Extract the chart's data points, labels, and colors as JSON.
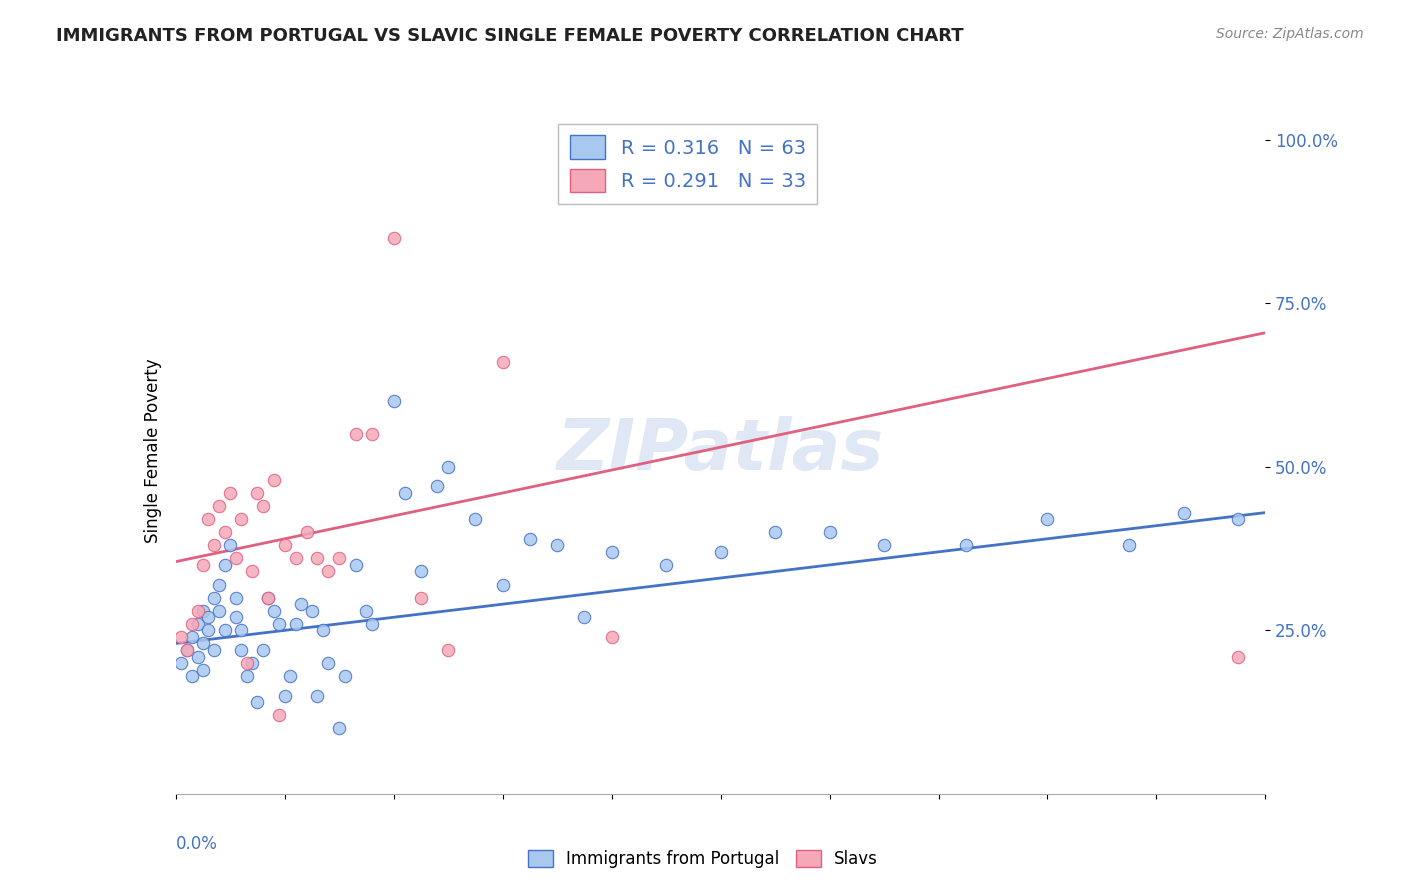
{
  "title": "IMMIGRANTS FROM PORTUGAL VS SLAVIC SINGLE FEMALE POVERTY CORRELATION CHART",
  "source": "Source: ZipAtlas.com",
  "ylabel": "Single Female Poverty",
  "color_blue": "#A8C8F0",
  "color_pink": "#F4A8B8",
  "line_blue": "#4472C4",
  "line_pink": "#E06080",
  "blue_scatter_x": [
    0.001,
    0.002,
    0.003,
    0.003,
    0.004,
    0.004,
    0.005,
    0.005,
    0.005,
    0.006,
    0.006,
    0.007,
    0.007,
    0.008,
    0.008,
    0.009,
    0.009,
    0.01,
    0.011,
    0.011,
    0.012,
    0.012,
    0.013,
    0.014,
    0.015,
    0.016,
    0.017,
    0.018,
    0.019,
    0.02,
    0.021,
    0.022,
    0.023,
    0.025,
    0.026,
    0.027,
    0.028,
    0.03,
    0.031,
    0.033,
    0.035,
    0.036,
    0.04,
    0.042,
    0.045,
    0.048,
    0.05,
    0.055,
    0.06,
    0.065,
    0.07,
    0.075,
    0.08,
    0.09,
    0.1,
    0.11,
    0.12,
    0.13,
    0.145,
    0.16,
    0.175,
    0.185,
    0.195
  ],
  "blue_scatter_y": [
    0.2,
    0.22,
    0.18,
    0.24,
    0.26,
    0.21,
    0.28,
    0.23,
    0.19,
    0.27,
    0.25,
    0.3,
    0.22,
    0.32,
    0.28,
    0.35,
    0.25,
    0.38,
    0.27,
    0.3,
    0.25,
    0.22,
    0.18,
    0.2,
    0.14,
    0.22,
    0.3,
    0.28,
    0.26,
    0.15,
    0.18,
    0.26,
    0.29,
    0.28,
    0.15,
    0.25,
    0.2,
    0.1,
    0.18,
    0.35,
    0.28,
    0.26,
    0.6,
    0.46,
    0.34,
    0.47,
    0.5,
    0.42,
    0.32,
    0.39,
    0.38,
    0.27,
    0.37,
    0.35,
    0.37,
    0.4,
    0.4,
    0.38,
    0.38,
    0.42,
    0.38,
    0.43,
    0.42
  ],
  "pink_scatter_x": [
    0.001,
    0.002,
    0.003,
    0.004,
    0.005,
    0.006,
    0.007,
    0.008,
    0.009,
    0.01,
    0.011,
    0.012,
    0.013,
    0.014,
    0.015,
    0.016,
    0.017,
    0.018,
    0.019,
    0.02,
    0.022,
    0.024,
    0.026,
    0.028,
    0.03,
    0.033,
    0.036,
    0.04,
    0.045,
    0.05,
    0.06,
    0.08,
    0.195
  ],
  "pink_scatter_y": [
    0.24,
    0.22,
    0.26,
    0.28,
    0.35,
    0.42,
    0.38,
    0.44,
    0.4,
    0.46,
    0.36,
    0.42,
    0.2,
    0.34,
    0.46,
    0.44,
    0.3,
    0.48,
    0.12,
    0.38,
    0.36,
    0.4,
    0.36,
    0.34,
    0.36,
    0.55,
    0.55,
    0.85,
    0.3,
    0.22,
    0.66,
    0.24,
    0.21
  ],
  "blue_line_x": [
    0.0,
    0.2
  ],
  "blue_line_y": [
    0.23,
    0.43
  ],
  "pink_line_x": [
    0.0,
    0.2
  ],
  "pink_line_y": [
    0.355,
    0.705
  ],
  "xlim": [
    0.0,
    0.2
  ],
  "ylim": [
    0.0,
    1.05
  ],
  "watermark": "ZIPatlas",
  "figsize": [
    14.06,
    8.92
  ],
  "dpi": 100
}
